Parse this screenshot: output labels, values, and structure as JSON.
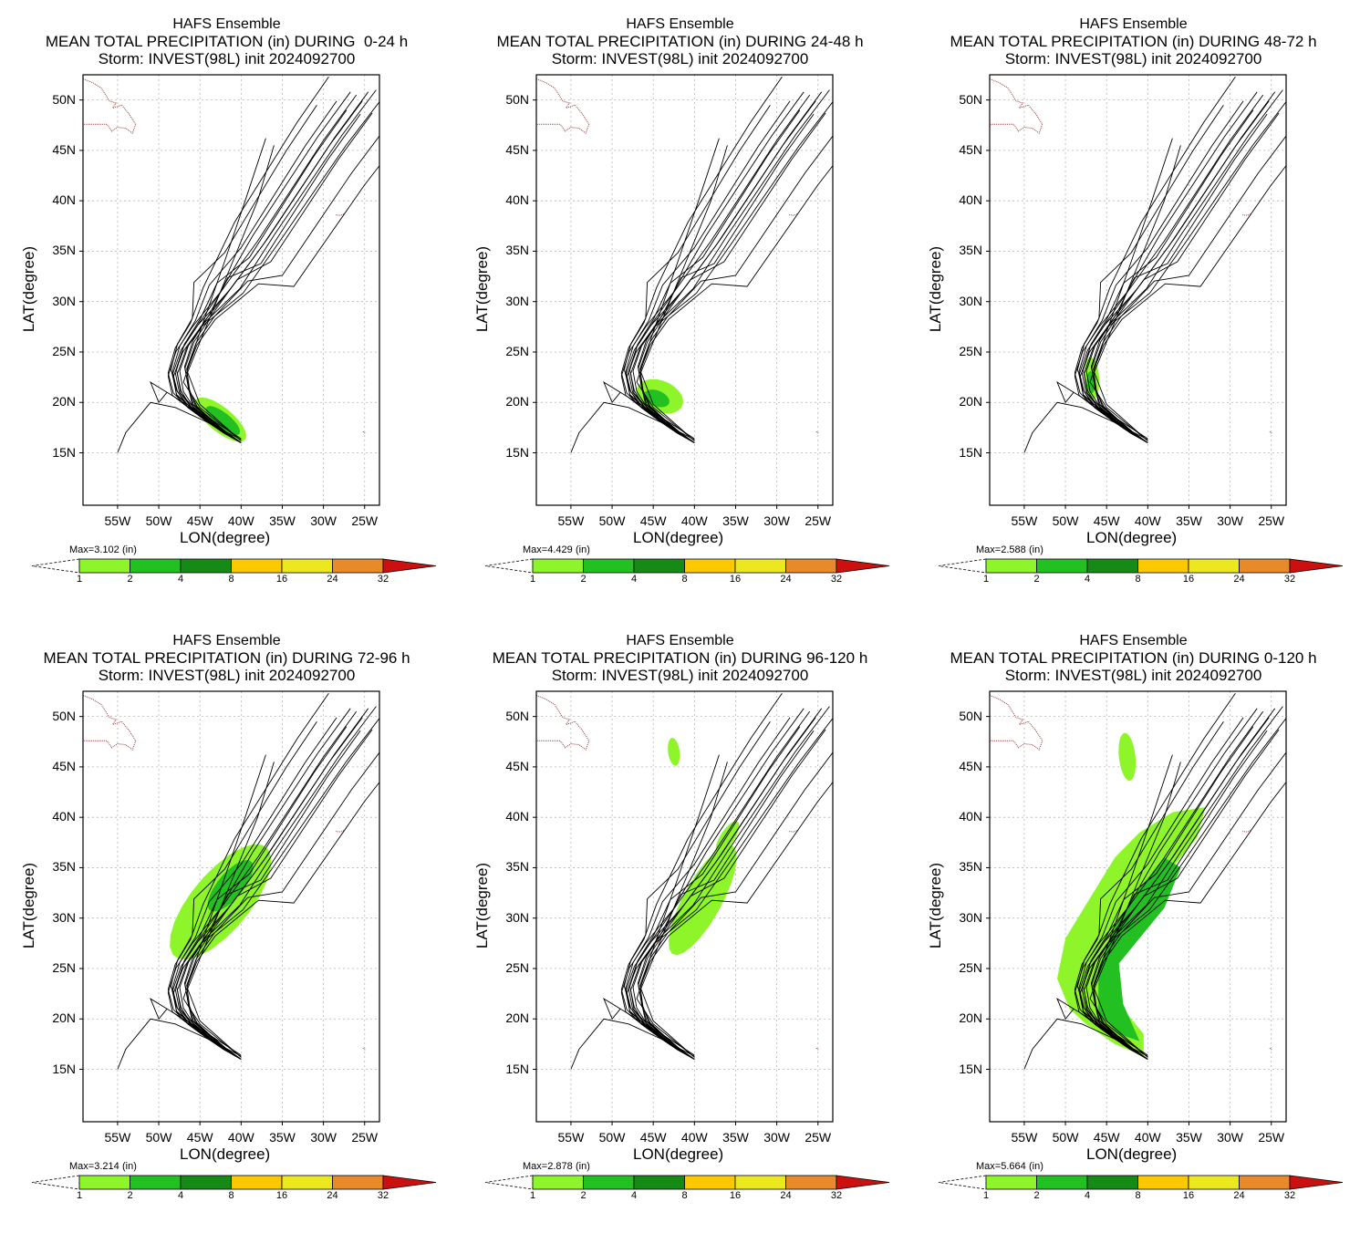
{
  "common": {
    "title_line1": "HAFS Ensemble",
    "title_line3": "Storm: INVEST(98L) init 2024092700",
    "units": "(in)",
    "xlabel": "LON(degree)",
    "ylabel": "LAT(degree)",
    "lat_ticks": [
      "50N",
      "45N",
      "40N",
      "35N",
      "30N",
      "25N",
      "20N",
      "15N"
    ],
    "lon_ticks": [
      "55W",
      "50W",
      "45W",
      "40W",
      "35W",
      "30W",
      "25W"
    ],
    "colorbar_levels": [
      "1",
      "2",
      "4",
      "8",
      "16",
      "24",
      "32"
    ],
    "colorbar_colors": [
      "#8ff52b",
      "#22c020",
      "#158a15",
      "#fcc800",
      "#ece820",
      "#e88a2a",
      "#cc1010"
    ],
    "track_color": "#000000",
    "coast_color": "#8b3a3a"
  },
  "panels": [
    {
      "title_line2": "MEAN TOTAL PRECIPITATION (in) DURING  0-24 h",
      "max_label": "Max=3.102",
      "period": "0-24 h"
    },
    {
      "title_line2": "MEAN TOTAL PRECIPITATION (in) DURING 24-48 h",
      "max_label": "Max=4.429",
      "period": "24-48 h"
    },
    {
      "title_line2": "MEAN TOTAL PRECIPITATION (in) DURING 48-72 h",
      "max_label": "Max=2.588",
      "period": "48-72 h"
    },
    {
      "title_line2": "MEAN TOTAL PRECIPITATION (in) DURING 72-96 h",
      "max_label": "Max=3.214",
      "period": "72-96 h"
    },
    {
      "title_line2": "MEAN TOTAL PRECIPITATION (in) DURING 96-120 h",
      "max_label": "Max=2.878",
      "period": "96-120 h"
    },
    {
      "title_line2": "MEAN TOTAL PRECIPITATION (in) DURING 0-120 h",
      "max_label": "Max=5.664",
      "period": "0-120 h"
    }
  ]
}
